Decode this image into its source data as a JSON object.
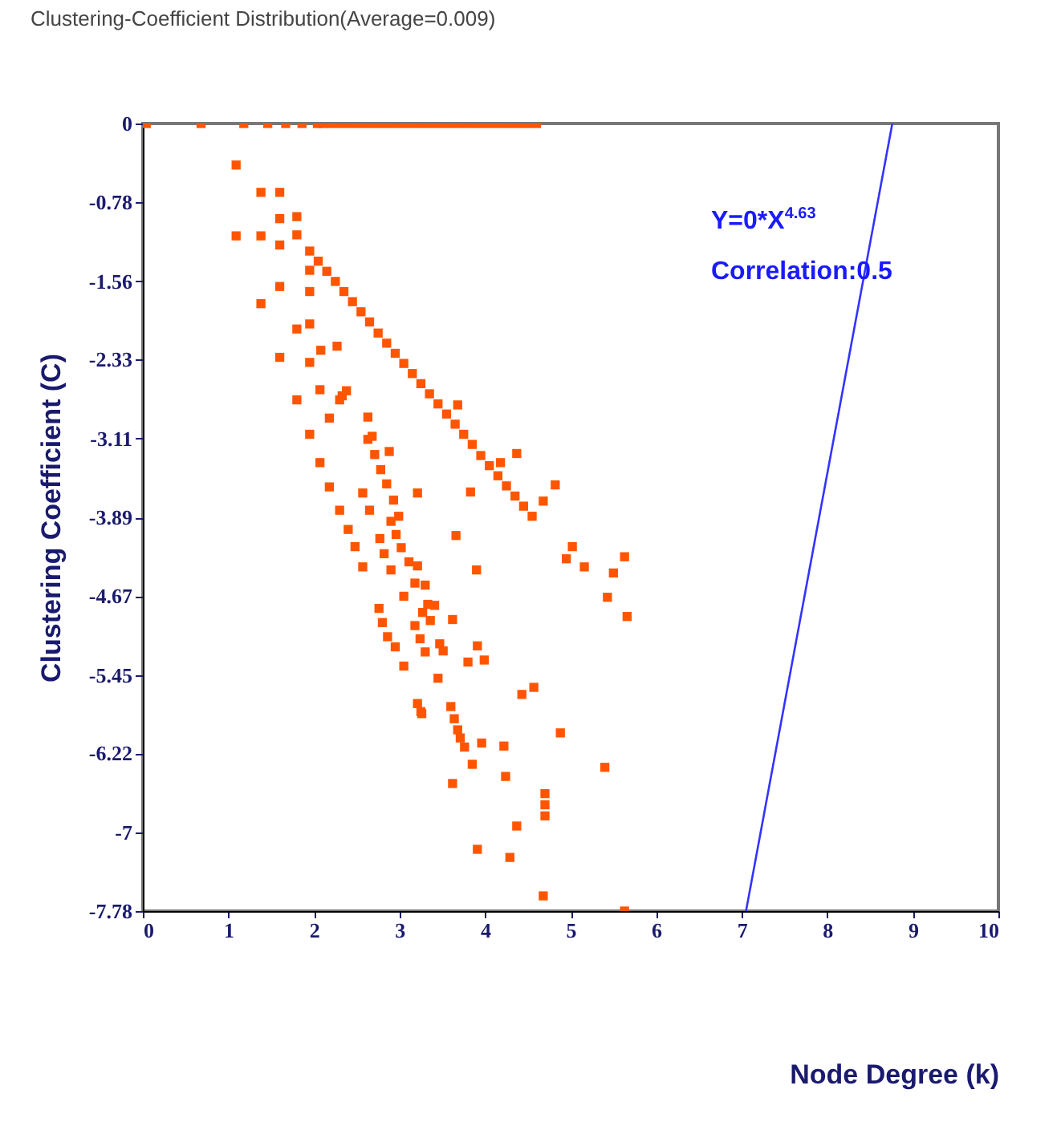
{
  "chart_data": {
    "type": "scatter",
    "title": "Clustering-Coefficient Distribution(Average=0.009)",
    "xlabel": "Node Degree (k)",
    "ylabel": "Clustering Coefficient (C)",
    "xlim": [
      0,
      10
    ],
    "xticks": [
      0,
      1,
      2,
      3,
      4,
      5,
      6,
      7,
      8,
      9,
      10
    ],
    "ylim": [
      -7.78,
      0
    ],
    "yticks": [
      0,
      -0.78,
      -1.56,
      -2.33,
      -3.11,
      -3.89,
      -4.67,
      -5.45,
      -6.22,
      -7,
      -7.78
    ],
    "grid": false,
    "annotations": [
      "Y=0*X$^{4.63}$",
      "Correlation:0.5"
    ],
    "series": [
      {
        "marker": "square",
        "color": "#ff5500",
        "x": [
          0.04,
          0.68,
          1.18,
          1.46,
          1.67,
          1.86,
          2.04,
          2.1,
          2.2,
          2.3,
          2.4,
          2.5,
          2.6,
          2.7,
          2.8,
          2.9,
          3.0,
          3.1,
          3.2,
          3.3,
          3.4,
          3.5,
          3.6,
          3.7,
          3.8,
          3.9,
          4.0,
          4.1,
          4.2,
          4.3,
          4.4,
          4.5,
          4.6,
          1.09,
          1.38,
          1.6,
          1.6,
          1.8,
          1.09,
          1.38,
          1.6,
          1.8,
          1.95,
          1.95,
          1.6,
          1.38,
          1.95,
          1.8,
          1.95,
          1.6,
          1.95,
          2.08,
          2.27,
          2.07,
          1.8,
          2.38,
          2.3,
          2.18,
          1.95,
          2.63,
          2.68,
          2.88,
          2.07,
          2.18,
          2.57,
          3.21,
          3.83,
          2.05,
          2.15,
          2.25,
          2.35,
          2.45,
          2.55,
          2.65,
          2.75,
          2.85,
          2.95,
          3.05,
          3.15,
          3.25,
          3.35,
          3.45,
          3.55,
          3.65,
          3.75,
          3.85,
          3.95,
          4.05,
          4.15,
          4.25,
          4.35,
          4.45,
          4.55,
          4.18,
          3.68,
          4.37,
          4.82,
          4.68,
          5.02,
          4.95,
          5.16,
          5.63,
          5.5,
          5.43,
          5.66,
          3.9,
          2.33,
          2.3,
          2.4,
          2.48,
          2.57,
          2.63,
          2.71,
          2.78,
          2.85,
          2.65,
          2.93,
          2.99,
          2.9,
          2.77,
          2.96,
          2.82,
          3.02,
          2.9,
          3.11,
          3.21,
          3.18,
          3.3,
          3.05,
          3.33,
          3.41,
          3.27,
          2.76,
          2.8,
          2.86,
          2.95,
          3.05,
          3.18,
          3.24,
          3.3,
          3.36,
          3.47,
          3.51,
          3.62,
          3.45,
          3.21,
          3.25,
          3.6,
          3.64,
          3.66,
          3.91,
          3.8,
          3.99,
          4.43,
          4.57,
          4.88,
          3.26,
          3.68,
          3.71,
          3.76,
          3.96,
          3.85,
          3.62,
          4.22,
          4.24,
          5.4,
          4.7,
          4.7,
          4.7,
          4.37,
          3.91,
          4.29,
          4.68,
          5.63
        ],
        "values": [
          0,
          0,
          0,
          0,
          0,
          0,
          0,
          0,
          0,
          0,
          0,
          0,
          0,
          0,
          0,
          0,
          0,
          0,
          0,
          0,
          0,
          0,
          0,
          0,
          0,
          0,
          0,
          0,
          0,
          0,
          0,
          0,
          0,
          -0.41,
          -0.68,
          -0.68,
          -0.94,
          -0.92,
          -1.11,
          -1.11,
          -1.2,
          -1.1,
          -1.26,
          -1.45,
          -1.61,
          -1.78,
          -1.66,
          -2.03,
          -1.98,
          -2.31,
          -2.36,
          -2.24,
          -2.2,
          -2.63,
          -2.73,
          -2.64,
          -2.73,
          -2.91,
          -3.07,
          -2.9,
          -3.09,
          -3.24,
          -3.35,
          -3.59,
          -3.65,
          -3.65,
          -3.64,
          -1.36,
          -1.46,
          -1.56,
          -1.66,
          -1.76,
          -1.86,
          -1.96,
          -2.07,
          -2.17,
          -2.27,
          -2.37,
          -2.47,
          -2.57,
          -2.67,
          -2.77,
          -2.87,
          -2.97,
          -3.07,
          -3.17,
          -3.28,
          -3.38,
          -3.48,
          -3.58,
          -3.68,
          -3.78,
          -3.88,
          -3.35,
          -2.78,
          -3.26,
          -3.57,
          -3.73,
          -4.18,
          -4.3,
          -4.38,
          -4.28,
          -4.44,
          -4.68,
          -4.87,
          -4.41,
          -2.69,
          -3.82,
          -4.01,
          -4.18,
          -4.38,
          -3.12,
          -3.27,
          -3.42,
          -3.56,
          -3.82,
          -3.72,
          -3.88,
          -3.93,
          -4.1,
          -4.06,
          -4.25,
          -4.19,
          -4.41,
          -4.33,
          -4.37,
          -4.54,
          -4.56,
          -4.67,
          -4.75,
          -4.76,
          -4.83,
          -4.79,
          -4.93,
          -5.07,
          -5.17,
          -5.36,
          -4.96,
          -5.09,
          -5.22,
          -4.91,
          -5.14,
          -5.21,
          -4.9,
          -5.48,
          -5.73,
          -5.81,
          -5.76,
          -5.88,
          -4.07,
          -5.16,
          -5.32,
          -5.3,
          -5.64,
          -5.57,
          -6.02,
          -5.83,
          -5.99,
          -6.07,
          -6.16,
          -6.12,
          -6.33,
          -6.52,
          -6.15,
          -6.45,
          -6.36,
          -6.62,
          -6.73,
          -6.84,
          -6.94,
          -7.17,
          -7.25,
          -7.63,
          -7.78
        ]
      },
      {
        "type": "line",
        "marker": "none",
        "color": "#3333ff",
        "x": [
          7.05,
          8.76
        ],
        "values": [
          -7.78,
          0
        ]
      }
    ]
  }
}
